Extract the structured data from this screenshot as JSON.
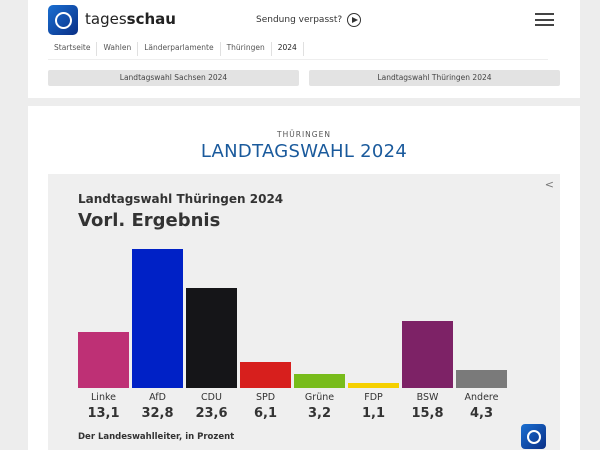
{
  "header": {
    "brand_light": "tages",
    "brand_bold": "schau",
    "missed": "Sendung verpasst?"
  },
  "breadcrumb": [
    "Startseite",
    "Wahlen",
    "Länderparlamente",
    "Thüringen",
    "2024"
  ],
  "selectors": [
    "Landtagswahl Sachsen 2024",
    "Landtagswahl Thüringen 2024"
  ],
  "main": {
    "kicker": "THÜRINGEN",
    "title": "LANDTAGSWAHL 2024"
  },
  "chart_data": {
    "type": "bar",
    "title": "Landtagswahl Thüringen 2024",
    "subtitle": "Vorl. Ergebnis",
    "categories": [
      "Linke",
      "AfD",
      "CDU",
      "SPD",
      "Grüne",
      "FDP",
      "BSW",
      "Andere"
    ],
    "values": [
      13.1,
      32.8,
      23.6,
      6.1,
      3.2,
      1.1,
      15.8,
      4.3
    ],
    "value_labels": [
      "13,1",
      "32,8",
      "23,6",
      "6,1",
      "3,2",
      "1,1",
      "15,8",
      "4,3"
    ],
    "colors": [
      "#be3075",
      "#0021c6",
      "#151518",
      "#d71f1d",
      "#78bc1b",
      "#f5d000",
      "#7d2266",
      "#7a7a7a"
    ],
    "source": "Der Landeswahlleiter, in Prozent",
    "unit": "Prozent"
  }
}
